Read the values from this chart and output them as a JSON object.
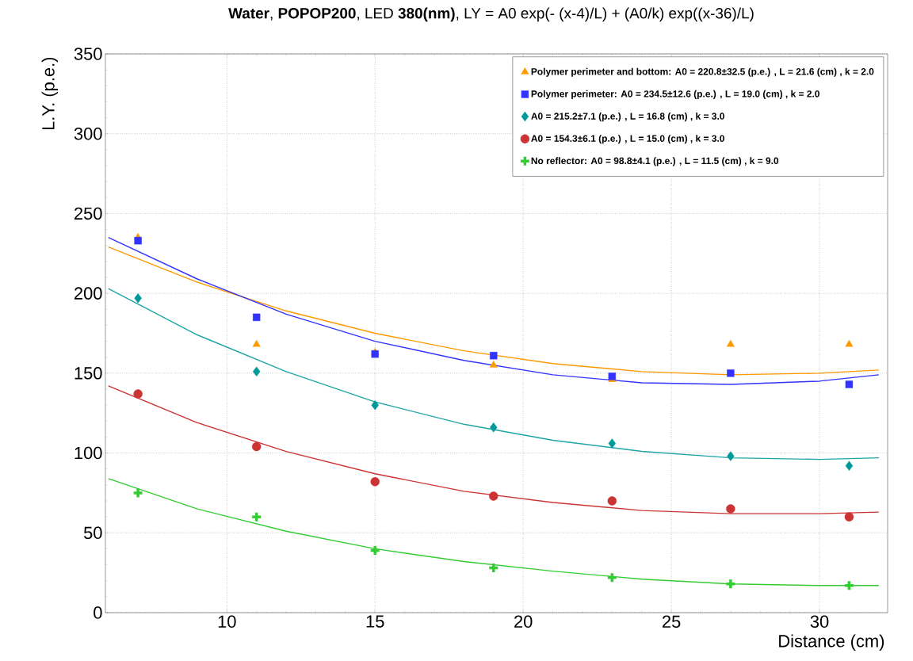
{
  "chart_data": {
    "type": "scatter",
    "title": "**Water**, **POPOP200**, LED **380(nm)**,   LY = A0 exp(- (x-4)/L) + (A0/k) exp((x-36)/L)",
    "xlabel": "Distance (cm)",
    "ylabel": "L.Y. (p.e.)",
    "x": [
      7,
      11,
      15,
      19,
      23,
      27,
      31
    ],
    "series": [
      {
        "name": "Polymer perimeter and bottom:   A0 = 220.8±32.5 (p.e.) ,  L = 21.6 (cm) ,  k = 2.0",
        "color": "#ff9900",
        "marker": "triangle",
        "values": [
          235,
          168,
          163,
          155,
          146,
          168,
          168
        ]
      },
      {
        "name": "Polymer perimeter:   A0 = 234.5±12.6 (p.e.) ,  L = 19.0 (cm) ,  k = 2.0",
        "color": "#3333ff",
        "marker": "square",
        "values": [
          233,
          185,
          162,
          161,
          148,
          150,
          143
        ]
      },
      {
        "name": "A0 = 215.2±7.1 (p.e.) ,  L = 16.8 (cm) ,  k = 3.0",
        "color": "#009999",
        "marker": "diamond",
        "values": [
          197,
          151,
          130,
          116,
          106,
          98,
          92
        ]
      },
      {
        "name": "A0 = 154.3±6.1 (p.e.) ,  L = 15.0 (cm) ,  k = 3.0",
        "color": "#cc3333",
        "marker": "circle",
        "values": [
          137,
          104,
          82,
          73,
          70,
          65,
          60
        ]
      },
      {
        "name": "No reflector:   A0 = 98.8±4.1 (p.e.) ,  L = 11.5 (cm) ,  k = 9.0",
        "color": "#33cc33",
        "marker": "cross",
        "values": [
          75,
          60,
          39,
          28,
          22,
          18,
          17
        ]
      },
      {
        "type": "line",
        "color": "#ff9900",
        "marker": "none",
        "x": [
          6,
          9,
          12,
          15,
          18,
          21,
          24,
          27,
          30,
          32
        ],
        "values": [
          229,
          207,
          189,
          175,
          164,
          156,
          151,
          149,
          150,
          152
        ]
      },
      {
        "type": "line",
        "color": "#3333ff",
        "marker": "none",
        "x": [
          6,
          9,
          12,
          15,
          18,
          21,
          24,
          27,
          30,
          32
        ],
        "values": [
          235,
          209,
          187,
          170,
          158,
          149,
          144,
          143,
          145,
          149
        ]
      },
      {
        "type": "line",
        "color": "#1fa5a5",
        "marker": "none",
        "x": [
          6,
          9,
          12,
          15,
          18,
          21,
          24,
          27,
          30,
          32
        ],
        "values": [
          203,
          174,
          151,
          132,
          118,
          108,
          101,
          97,
          96,
          97
        ]
      },
      {
        "type": "line",
        "color": "#cc3333",
        "marker": "none",
        "x": [
          6,
          9,
          12,
          15,
          18,
          21,
          24,
          27,
          30,
          32
        ],
        "values": [
          142,
          119,
          101,
          87,
          76,
          69,
          64,
          62,
          62,
          63
        ]
      },
      {
        "type": "line",
        "color": "#33cc33",
        "marker": "none",
        "x": [
          6,
          9,
          12,
          15,
          18,
          21,
          24,
          27,
          30,
          32
        ],
        "values": [
          84,
          65,
          51,
          40,
          32,
          26,
          21,
          18,
          17,
          17
        ]
      }
    ],
    "xlim": [
      5.9,
      32.3
    ],
    "ylim": [
      0,
      350
    ],
    "xticks": [
      10,
      15,
      20,
      25,
      30
    ],
    "yticks": [
      0,
      50,
      100,
      150,
      200,
      250,
      300,
      350
    ],
    "grid": true,
    "legend": "top right",
    "line_style": "solid"
  }
}
